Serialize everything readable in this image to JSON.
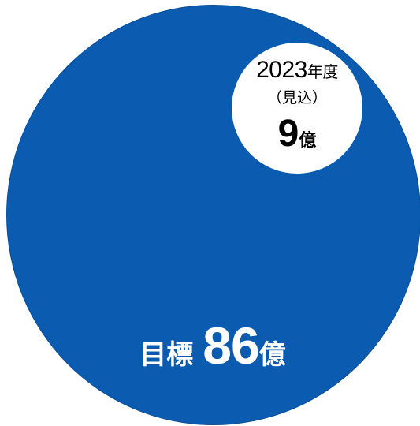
{
  "chart_data": {
    "type": "bubble",
    "colors": {
      "target": "#0b5cb0",
      "current": "#ffffff"
    },
    "target": {
      "label": "目標",
      "value": "86",
      "unit": "億"
    },
    "current": {
      "year": "2023",
      "year_unit": "年度",
      "note": "（見込）",
      "value": "9",
      "unit": "億"
    }
  }
}
